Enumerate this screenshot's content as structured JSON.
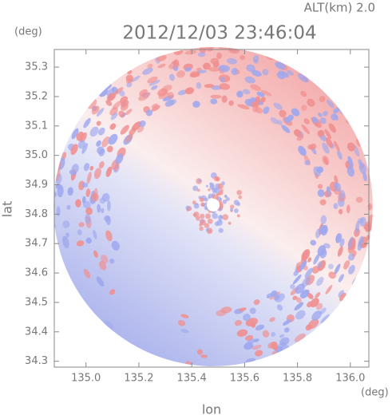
{
  "chart_data": {
    "type": "radar-field",
    "title": "2012/12/03 23:46:04",
    "annotation": "ALT(km) 2.0",
    "x_label": "lon",
    "y_label": "lat",
    "x_unit": "(deg)",
    "y_unit": "(deg)",
    "xlim": [
      134.88,
      136.07
    ],
    "ylim": [
      34.28,
      35.36
    ],
    "xticks": [
      {
        "value": 135,
        "label": "135.0"
      },
      135.2,
      135.4,
      135.6,
      135.8,
      {
        "value": 136,
        "label": "136.0"
      }
    ],
    "yticks": [
      34.3,
      34.4,
      34.5,
      34.6,
      34.7,
      34.8,
      34.9,
      {
        "value": 35,
        "label": "35.0"
      },
      35.1,
      35.2,
      35.3
    ],
    "colors": {
      "approaching": "#9fa8ee",
      "receding": "#f08f8f"
    }
  }
}
